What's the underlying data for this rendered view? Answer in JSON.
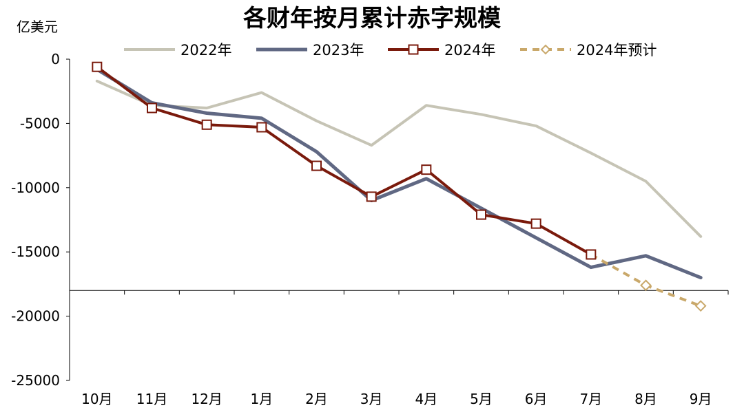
{
  "chart_data": {
    "type": "line",
    "title": "各财年按月累计赤字规模",
    "ylabel": "亿美元",
    "xlabel": "",
    "ylim": [
      -25000,
      0
    ],
    "yticks": [
      0,
      -5000,
      -10000,
      -15000,
      -20000,
      -25000
    ],
    "x_axis_crosses_at": -18000,
    "grid": false,
    "legend_position": "top",
    "categories": [
      "10月",
      "11月",
      "12月",
      "1月",
      "2月",
      "3月",
      "4月",
      "5月",
      "6月",
      "7月",
      "8月",
      "9月"
    ],
    "series": [
      {
        "name": "2022年",
        "color": "#c6c4b5",
        "style": "solid",
        "marker": "none",
        "values": [
          -1700,
          -3600,
          -3800,
          -2600,
          -4800,
          -6700,
          -3600,
          -4300,
          -5200,
          -7300,
          -9500,
          -13800
        ]
      },
      {
        "name": "2023年",
        "color": "#606883",
        "style": "solid",
        "marker": "none",
        "values": [
          -800,
          -3400,
          -4200,
          -4600,
          -7200,
          -11000,
          -9300,
          -11600,
          -13900,
          -16200,
          -15300,
          -17000
        ]
      },
      {
        "name": "2024年",
        "color": "#7a1a0c",
        "style": "solid",
        "marker": "square",
        "values": [
          -600,
          -3800,
          -5100,
          -5300,
          -8300,
          -10700,
          -8600,
          -12100,
          -12800,
          -15200,
          null,
          null
        ]
      },
      {
        "name": "2024年预计",
        "color": "#c9a86a",
        "style": "dashed",
        "marker": "diamond",
        "values": [
          null,
          null,
          null,
          null,
          null,
          null,
          null,
          null,
          null,
          -15200,
          -17600,
          -19200
        ]
      }
    ]
  }
}
